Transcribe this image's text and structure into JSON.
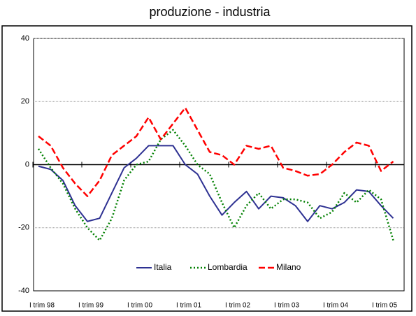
{
  "chart_data": {
    "type": "line",
    "title": "produzione - industria",
    "categories": [
      "I trim 98",
      null,
      null,
      null,
      "I trim 99",
      null,
      null,
      null,
      "I trim 00",
      null,
      null,
      null,
      "I trim 01",
      null,
      null,
      null,
      "I trim 02",
      null,
      null,
      null,
      "I trim 03",
      null,
      null,
      null,
      "I trim 04",
      null,
      null,
      null,
      "I trim 05",
      null
    ],
    "series": [
      {
        "name": "Italia",
        "color": "#2e3192",
        "dash": "solid",
        "values": [
          -0.5,
          -1.5,
          -5,
          -13,
          -18,
          -17,
          -9,
          -1,
          2,
          6,
          6,
          6,
          0,
          -3,
          -10,
          -16,
          -12,
          -8.5,
          -14,
          -10,
          -10.5,
          -13,
          -18,
          -13,
          -14,
          -12,
          -8,
          -8.5,
          -13,
          -17
        ]
      },
      {
        "name": "Lombardia",
        "color": "#008000",
        "dash": "dotted",
        "values": [
          5,
          -1,
          -6,
          -14,
          -20,
          -24,
          -17,
          -5,
          0,
          1,
          8,
          11,
          6,
          0,
          -3,
          -12,
          -20,
          -13,
          -9,
          -14,
          -11,
          -11,
          -12,
          -17,
          -15,
          -9,
          -12,
          -8,
          -11,
          -24
        ]
      },
      {
        "name": "Milano",
        "color": "#ff0000",
        "dash": "dashed",
        "values": [
          9,
          6,
          -1,
          -6,
          -10,
          -5,
          3,
          6,
          9,
          15,
          8,
          13,
          18,
          11,
          4,
          3,
          0,
          6,
          5,
          6,
          -1,
          -2,
          -3.5,
          -3,
          0,
          4,
          7,
          6,
          -2,
          1
        ]
      }
    ],
    "ylim": [
      -40,
      40
    ],
    "yticks": [
      -40,
      -20,
      0,
      20,
      40
    ],
    "grid": true,
    "legend": "bottom"
  }
}
